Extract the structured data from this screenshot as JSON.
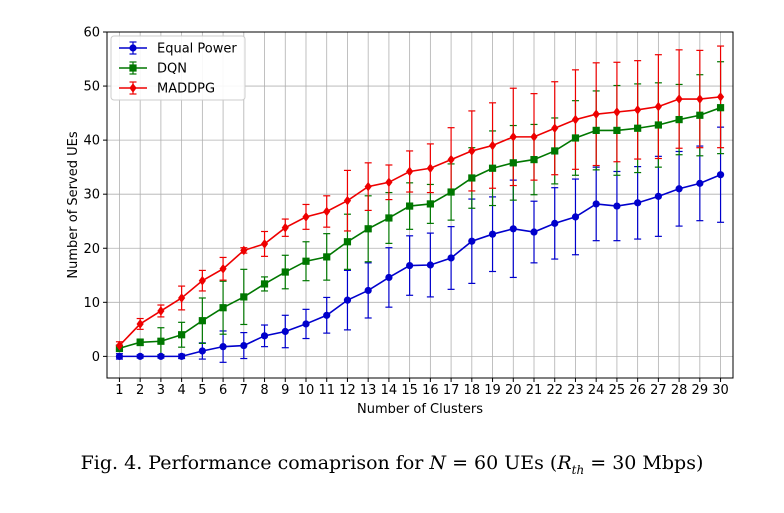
{
  "chart_data": {
    "type": "line",
    "xlabel": "Number of Clusters",
    "ylabel": "Number of Served UEs",
    "xlim": [
      0.4,
      30.6
    ],
    "ylim": [
      -4,
      60
    ],
    "yticks": [
      0,
      10,
      20,
      30,
      40,
      50,
      60
    ],
    "x": [
      1,
      2,
      3,
      4,
      5,
      6,
      7,
      8,
      9,
      10,
      11,
      12,
      13,
      14,
      15,
      16,
      17,
      18,
      19,
      20,
      21,
      22,
      23,
      24,
      25,
      26,
      27,
      28,
      29,
      30
    ],
    "grid": true,
    "legend_position": "top-left",
    "series": [
      {
        "name": "Equal Power",
        "color": "#0000cc",
        "marker": "circle",
        "values": [
          0,
          0,
          0,
          0,
          1,
          1.8,
          2,
          3.8,
          4.6,
          6,
          7.6,
          10.4,
          12.2,
          14.6,
          16.8,
          16.9,
          18.2,
          21.3,
          22.6,
          23.6,
          23,
          24.6,
          25.8,
          28.2,
          27.8,
          28.4,
          29.6,
          31,
          32,
          33.6
        ],
        "errors": [
          0.5,
          0.3,
          0.3,
          0.4,
          1.5,
          2.9,
          2.4,
          2.0,
          3.0,
          2.7,
          3.3,
          5.5,
          5.1,
          5.5,
          5.5,
          5.9,
          5.8,
          7.8,
          6.9,
          9.0,
          5.7,
          6.6,
          7.0,
          6.8,
          6.4,
          6.7,
          7.4,
          6.9,
          6.9,
          8.8
        ]
      },
      {
        "name": "DQN",
        "color": "#007700",
        "marker": "square",
        "values": [
          1.5,
          2.6,
          2.8,
          4,
          6.6,
          9,
          11,
          13.4,
          15.6,
          17.6,
          18.4,
          21.2,
          23.6,
          25.6,
          27.8,
          28.2,
          30.4,
          33,
          34.8,
          35.8,
          36.4,
          38,
          40.4,
          41.8,
          41.8,
          42.2,
          42.8,
          43.8,
          44.6,
          46
        ],
        "errors": [
          0.6,
          0.6,
          2.5,
          2.3,
          4.2,
          4.9,
          5.1,
          1.3,
          3.1,
          3.6,
          4.3,
          5.1,
          6.1,
          4.7,
          4.3,
          3.6,
          5.2,
          5.6,
          6.9,
          6.9,
          6.5,
          6.1,
          6.9,
          7.3,
          8.3,
          8.2,
          7.8,
          6.5,
          7.5,
          8.5
        ]
      },
      {
        "name": "MADDPG",
        "color": "#ee0000",
        "marker": "diamond",
        "values": [
          2,
          6,
          8.4,
          10.8,
          14,
          16.2,
          19.6,
          20.8,
          23.8,
          25.8,
          26.8,
          28.8,
          31.4,
          32.2,
          34.2,
          34.8,
          36.4,
          38,
          39,
          40.6,
          40.6,
          42.2,
          43.8,
          44.8,
          45.2,
          45.6,
          46.2,
          47.6,
          47.6,
          48
        ],
        "errors": [
          0.7,
          1.0,
          1.1,
          2.2,
          1.9,
          2.1,
          0.5,
          2.3,
          1.6,
          2.3,
          2.9,
          5.6,
          4.4,
          3.2,
          3.8,
          4.5,
          5.9,
          7.4,
          7.9,
          9.0,
          8.0,
          8.6,
          9.2,
          9.5,
          9.2,
          9.1,
          9.6,
          9.1,
          9.0,
          9.4
        ]
      }
    ]
  },
  "caption": {
    "prefix": "Fig. 4.  Performance comaprison for ",
    "var_n": "N",
    "eq_n": " = 60 UEs (",
    "var_r": "R",
    "var_r_sub": "th",
    "eq_r": " = 30 Mbps)"
  }
}
